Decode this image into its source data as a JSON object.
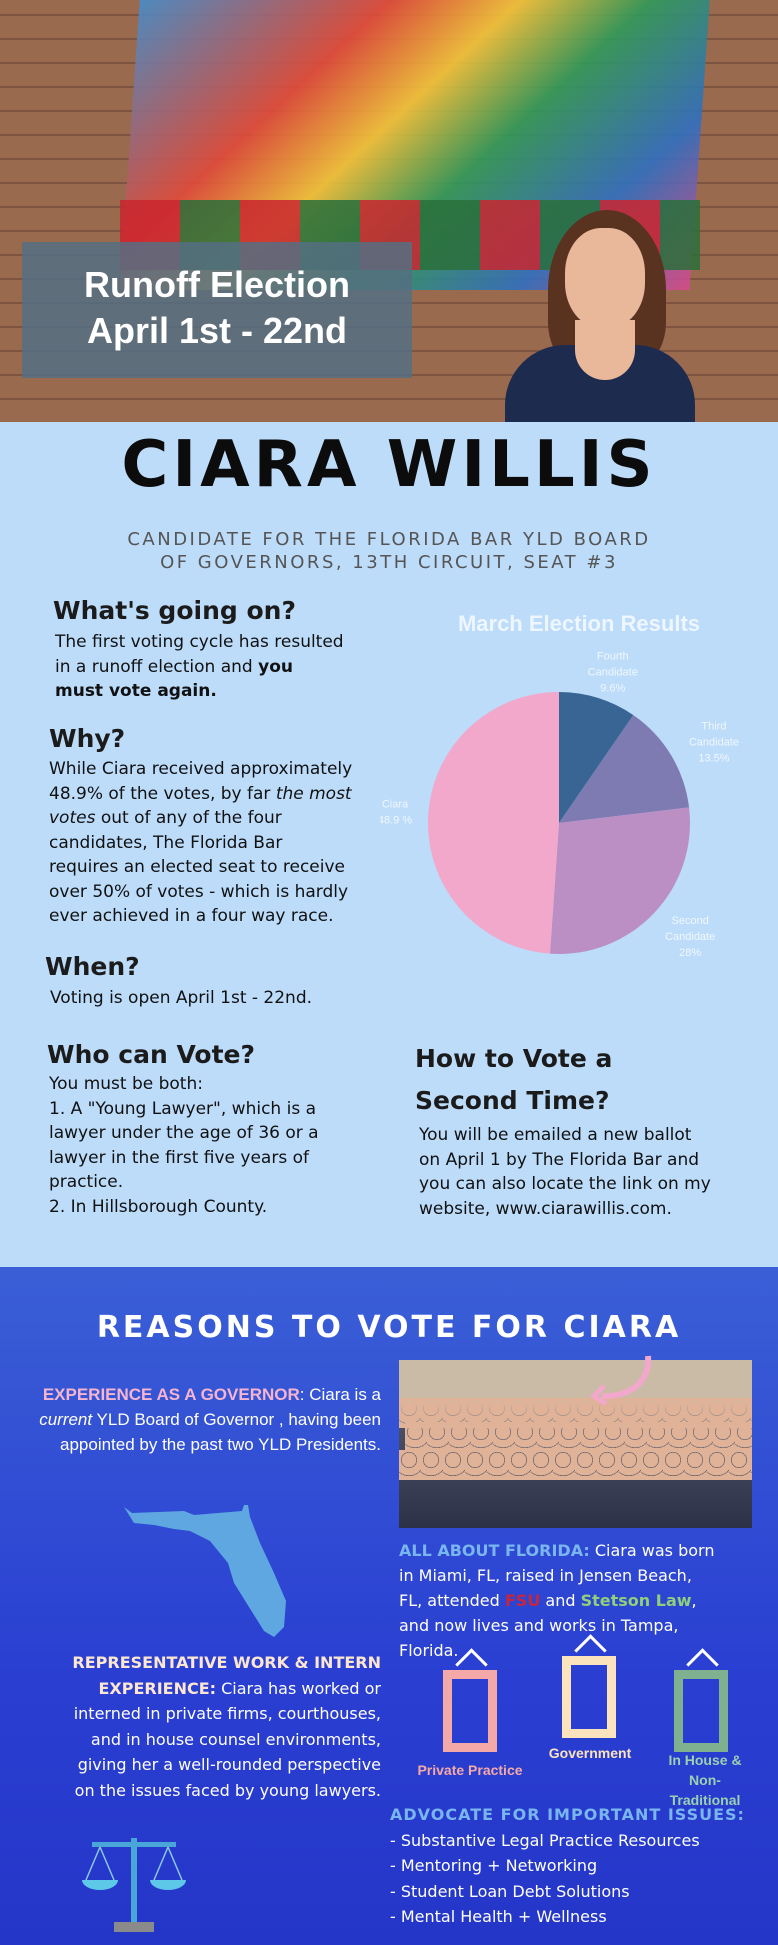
{
  "hero": {
    "banner_line1": "Runoff Election",
    "banner_line2": "April 1st - 22nd"
  },
  "header": {
    "name": "CIARA WILLIS",
    "subtitle_line1": "CANDIDATE FOR THE FLORIDA BAR YLD BOARD",
    "subtitle_line2": "OF GOVERNORS, 13TH CIRCUIT,  SEAT #3"
  },
  "sections": {
    "whats_going_on": {
      "heading": "What's going on?",
      "text1": "The first voting cycle has resulted",
      "text2": "in a runoff election and ",
      "bold1": "you",
      "bold2": "must vote again."
    },
    "why": {
      "heading": "Why?",
      "l1": "While Ciara received approximately",
      "l2": "48.9% of the votes, by far ",
      "em1": "the most",
      "em2": "votes",
      "l3": " out of any of the four",
      "l4": "candidates, The Florida Bar",
      "l5": "requires an elected seat to receive",
      "l6": "over 50% of votes - which is hardly",
      "l7": "ever achieved in a four way race."
    },
    "when": {
      "heading": "When?",
      "text": "Voting is open April 1st - 22nd."
    },
    "who": {
      "heading": "Who can Vote?",
      "lines": [
        "You must be both:",
        "1. A \"Young Lawyer\", which is a",
        "lawyer under the age of 36 or a",
        "lawyer in the first five years of",
        "practice.",
        "2.  In Hillsborough County."
      ]
    },
    "how": {
      "heading1": "How to Vote a",
      "heading2": "Second Time?",
      "lines": [
        "You will be emailed a new ballot",
        "on April 1 by The Florida Bar and",
        "you can also locate the link on my",
        "website, www.ciarawillis.com."
      ]
    }
  },
  "chart_data": {
    "type": "pie",
    "title": "March Election Results",
    "slices": [
      {
        "label": "Fourth Candidate",
        "value": 9.6,
        "display": "9.6%",
        "color": "#386594"
      },
      {
        "label": "Third Candidate",
        "value": 13.5,
        "display": "13.5%",
        "color": "#7e7ab2"
      },
      {
        "label": "Second Candidate",
        "value": 28,
        "display": "28%",
        "color": "#bb8fc4"
      },
      {
        "label": "Ciara",
        "value": 48.9,
        "display": "48.9 %",
        "color": "#f2a8ca"
      }
    ]
  },
  "reasons": {
    "heading": "REASONS TO VOTE FOR CIARA",
    "governor": {
      "title": "EXPERIENCE AS A GOVERNOR",
      "l1": ": Ciara is a",
      "em": "current",
      "l2": " YLD Board of Governor , having been",
      "l3": "appointed by the past two YLD Presidents."
    },
    "florida": {
      "title": "ALL ABOUT FLORIDA:",
      "l1": " Ciara was born",
      "l2": "in Miami, FL, raised in Jensen Beach,",
      "l3": "FL, attended ",
      "fsu": "FSU",
      "and": " and ",
      "stetson": "Stetson Law",
      "l4": ",",
      "l5": "and now lives and works in Tampa,",
      "l6": "Florida."
    },
    "work": {
      "title1": "REPRESENTATIVE WORK & INTERN",
      "title2": "EXPERIENCE:",
      "l1": " Ciara has worked or",
      "l2": "interned in private firms, courthouses,",
      "l3": "and in house counsel environments,",
      "l4": "giving her a well-rounded perspective",
      "l5": "on the issues faced by young lawyers."
    },
    "frames": [
      {
        "label": "Private Practice",
        "color": "#f4a9a8"
      },
      {
        "label": "Government",
        "color": "#fbe3bd"
      },
      {
        "label": "In House & Non-Traditional",
        "color": "#7fb08f"
      }
    ],
    "advocate": {
      "heading": "ADVOCATE FOR IMPORTANT ISSUES:",
      "items": [
        "- Substantive Legal Practice Resources",
        "- Mentoring + Networking",
        "- Student Loan Debt Solutions",
        "- Mental Health + Wellness"
      ]
    }
  }
}
